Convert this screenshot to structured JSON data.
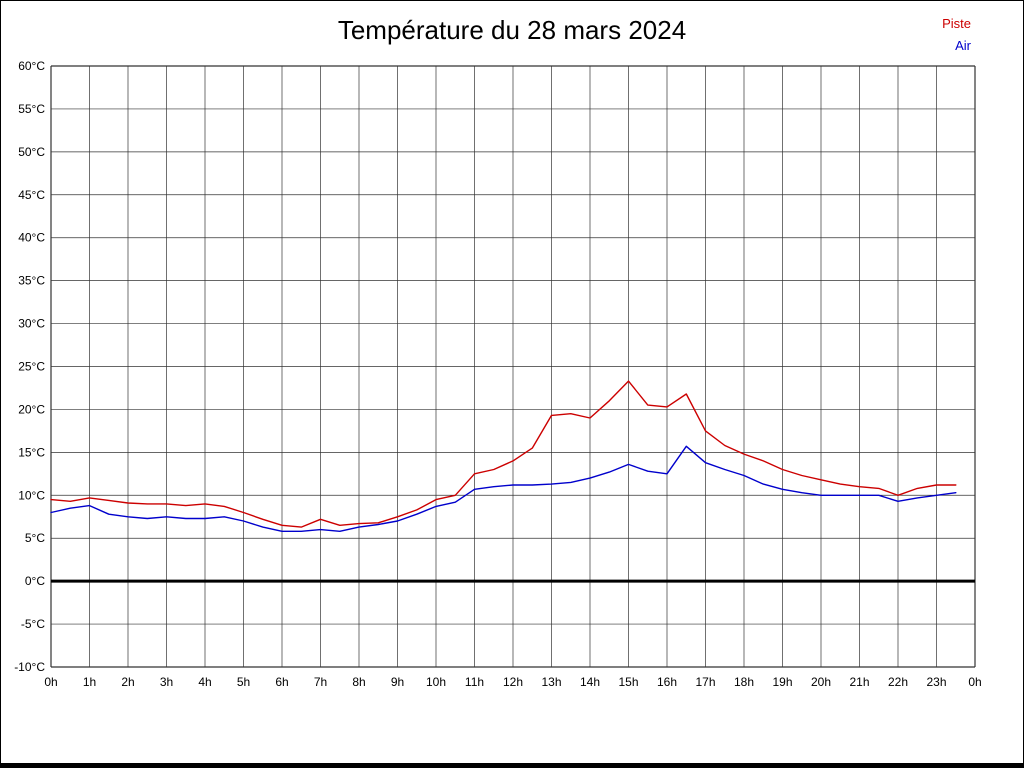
{
  "title": "Température du 28 mars 2024",
  "legend": {
    "items": [
      {
        "label": "Piste",
        "color": "#cc0000"
      },
      {
        "label": "Air",
        "color": "#0000cc"
      }
    ]
  },
  "chart_data": {
    "type": "line",
    "title": "Température du 28 mars 2024",
    "xlabel": "",
    "ylabel": "",
    "ylim": [
      -10,
      60
    ],
    "y_tick_step": 5,
    "y_unit": "°C",
    "xlim_hours": [
      0,
      24
    ],
    "x_tick_labels": [
      "0h",
      "1h",
      "2h",
      "3h",
      "4h",
      "5h",
      "6h",
      "7h",
      "8h",
      "9h",
      "10h",
      "11h",
      "12h",
      "13h",
      "14h",
      "15h",
      "16h",
      "17h",
      "18h",
      "19h",
      "20h",
      "21h",
      "22h",
      "23h",
      "0h"
    ],
    "grid": true,
    "zero_line": true,
    "legend_position": "top-right",
    "x": [
      0,
      0.5,
      1,
      1.5,
      2,
      2.5,
      3,
      3.5,
      4,
      4.5,
      5,
      5.5,
      6,
      6.5,
      7,
      7.5,
      8,
      8.5,
      9,
      9.5,
      10,
      10.5,
      11,
      11.5,
      12,
      12.5,
      13,
      13.5,
      14,
      14.5,
      15,
      15.5,
      16,
      16.5,
      17,
      17.5,
      18,
      18.5,
      19,
      19.5,
      20,
      20.5,
      21,
      21.5,
      22,
      22.5,
      23,
      23.5
    ],
    "series": [
      {
        "name": "Piste",
        "color": "#cc0000",
        "values": [
          9.5,
          9.3,
          9.7,
          9.4,
          9.1,
          9.0,
          9.0,
          8.8,
          9.0,
          8.7,
          8.0,
          7.2,
          6.5,
          6.3,
          7.2,
          6.5,
          6.7,
          6.8,
          7.5,
          8.3,
          9.5,
          10.0,
          12.5,
          13.0,
          14.0,
          15.5,
          19.3,
          19.5,
          19.0,
          21.0,
          23.3,
          20.5,
          20.3,
          21.8,
          17.5,
          15.8,
          14.8,
          14.0,
          13.0,
          12.3,
          11.8,
          11.3,
          11.0,
          10.8,
          10.0,
          10.8,
          11.2,
          11.2
        ]
      },
      {
        "name": "Air",
        "color": "#0000cc",
        "values": [
          8.0,
          8.5,
          8.8,
          7.8,
          7.5,
          7.3,
          7.5,
          7.3,
          7.3,
          7.5,
          7.0,
          6.3,
          5.8,
          5.8,
          6.0,
          5.8,
          6.3,
          6.6,
          7.0,
          7.8,
          8.7,
          9.2,
          10.7,
          11.0,
          11.2,
          11.2,
          11.3,
          11.5,
          12.0,
          12.7,
          13.6,
          12.8,
          12.5,
          15.7,
          13.8,
          13.0,
          12.3,
          11.3,
          10.7,
          10.3,
          10.0,
          10.0,
          10.0,
          10.0,
          9.3,
          9.7,
          10.0,
          10.3
        ]
      }
    ]
  }
}
